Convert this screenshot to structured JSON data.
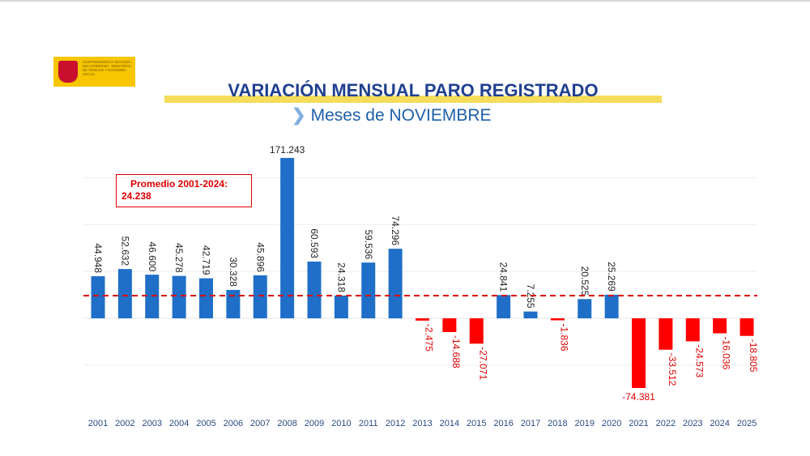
{
  "header": {
    "logo_text": "VICEPRESIDENCIA SEGUNDA DEL GOBIERNO · MINISTERIO DE TRABAJO Y ECONOMÍA SOCIAL",
    "title": "VARIACIÓN MENSUAL PARO REGISTRADO",
    "subtitle": "Meses de NOVIEMBRE"
  },
  "average_box": {
    "label": "Promedio 2001-2024:",
    "value": "24.238"
  },
  "colors": {
    "positive": "#1f6fc8",
    "negative": "#ff0000",
    "average_line": "#e00000",
    "title": "#1f3f8f"
  },
  "chart_data": {
    "type": "bar",
    "title": "VARIACIÓN MENSUAL PARO REGISTRADO",
    "subtitle": "Meses de NOVIEMBRE",
    "categories": [
      "2001",
      "2002",
      "2003",
      "2004",
      "2005",
      "2006",
      "2007",
      "2008",
      "2009",
      "2010",
      "2011",
      "2012",
      "2013",
      "2014",
      "2015",
      "2016",
      "2017",
      "2018",
      "2019",
      "2020",
      "2021",
      "2022",
      "2023",
      "2024",
      "2025"
    ],
    "values": [
      44948,
      52632,
      46600,
      45278,
      42719,
      30328,
      45896,
      171243,
      60593,
      24318,
      59536,
      74296,
      -2475,
      -14688,
      -27071,
      24841,
      7255,
      -1836,
      20525,
      25269,
      -74381,
      -33512,
      -24573,
      -16036,
      -18805
    ],
    "labels": [
      "44.948",
      "52.632",
      "46.600",
      "45.278",
      "42.719",
      "30.328",
      "45.896",
      "171.243",
      "60.593",
      "24.318",
      "59.536",
      "74.296",
      "-2.475",
      "-14.688",
      "-27.071",
      "24.841",
      "7.255",
      "-1.836",
      "20.525",
      "25.269",
      "-74.381",
      "-33.512",
      "-24.573",
      "-16.036",
      "-18.805"
    ],
    "reference_line": {
      "label": "Promedio 2001-2024",
      "value": 24238,
      "style": "dashed"
    },
    "grid": true,
    "xlabel": "",
    "ylabel": ""
  }
}
